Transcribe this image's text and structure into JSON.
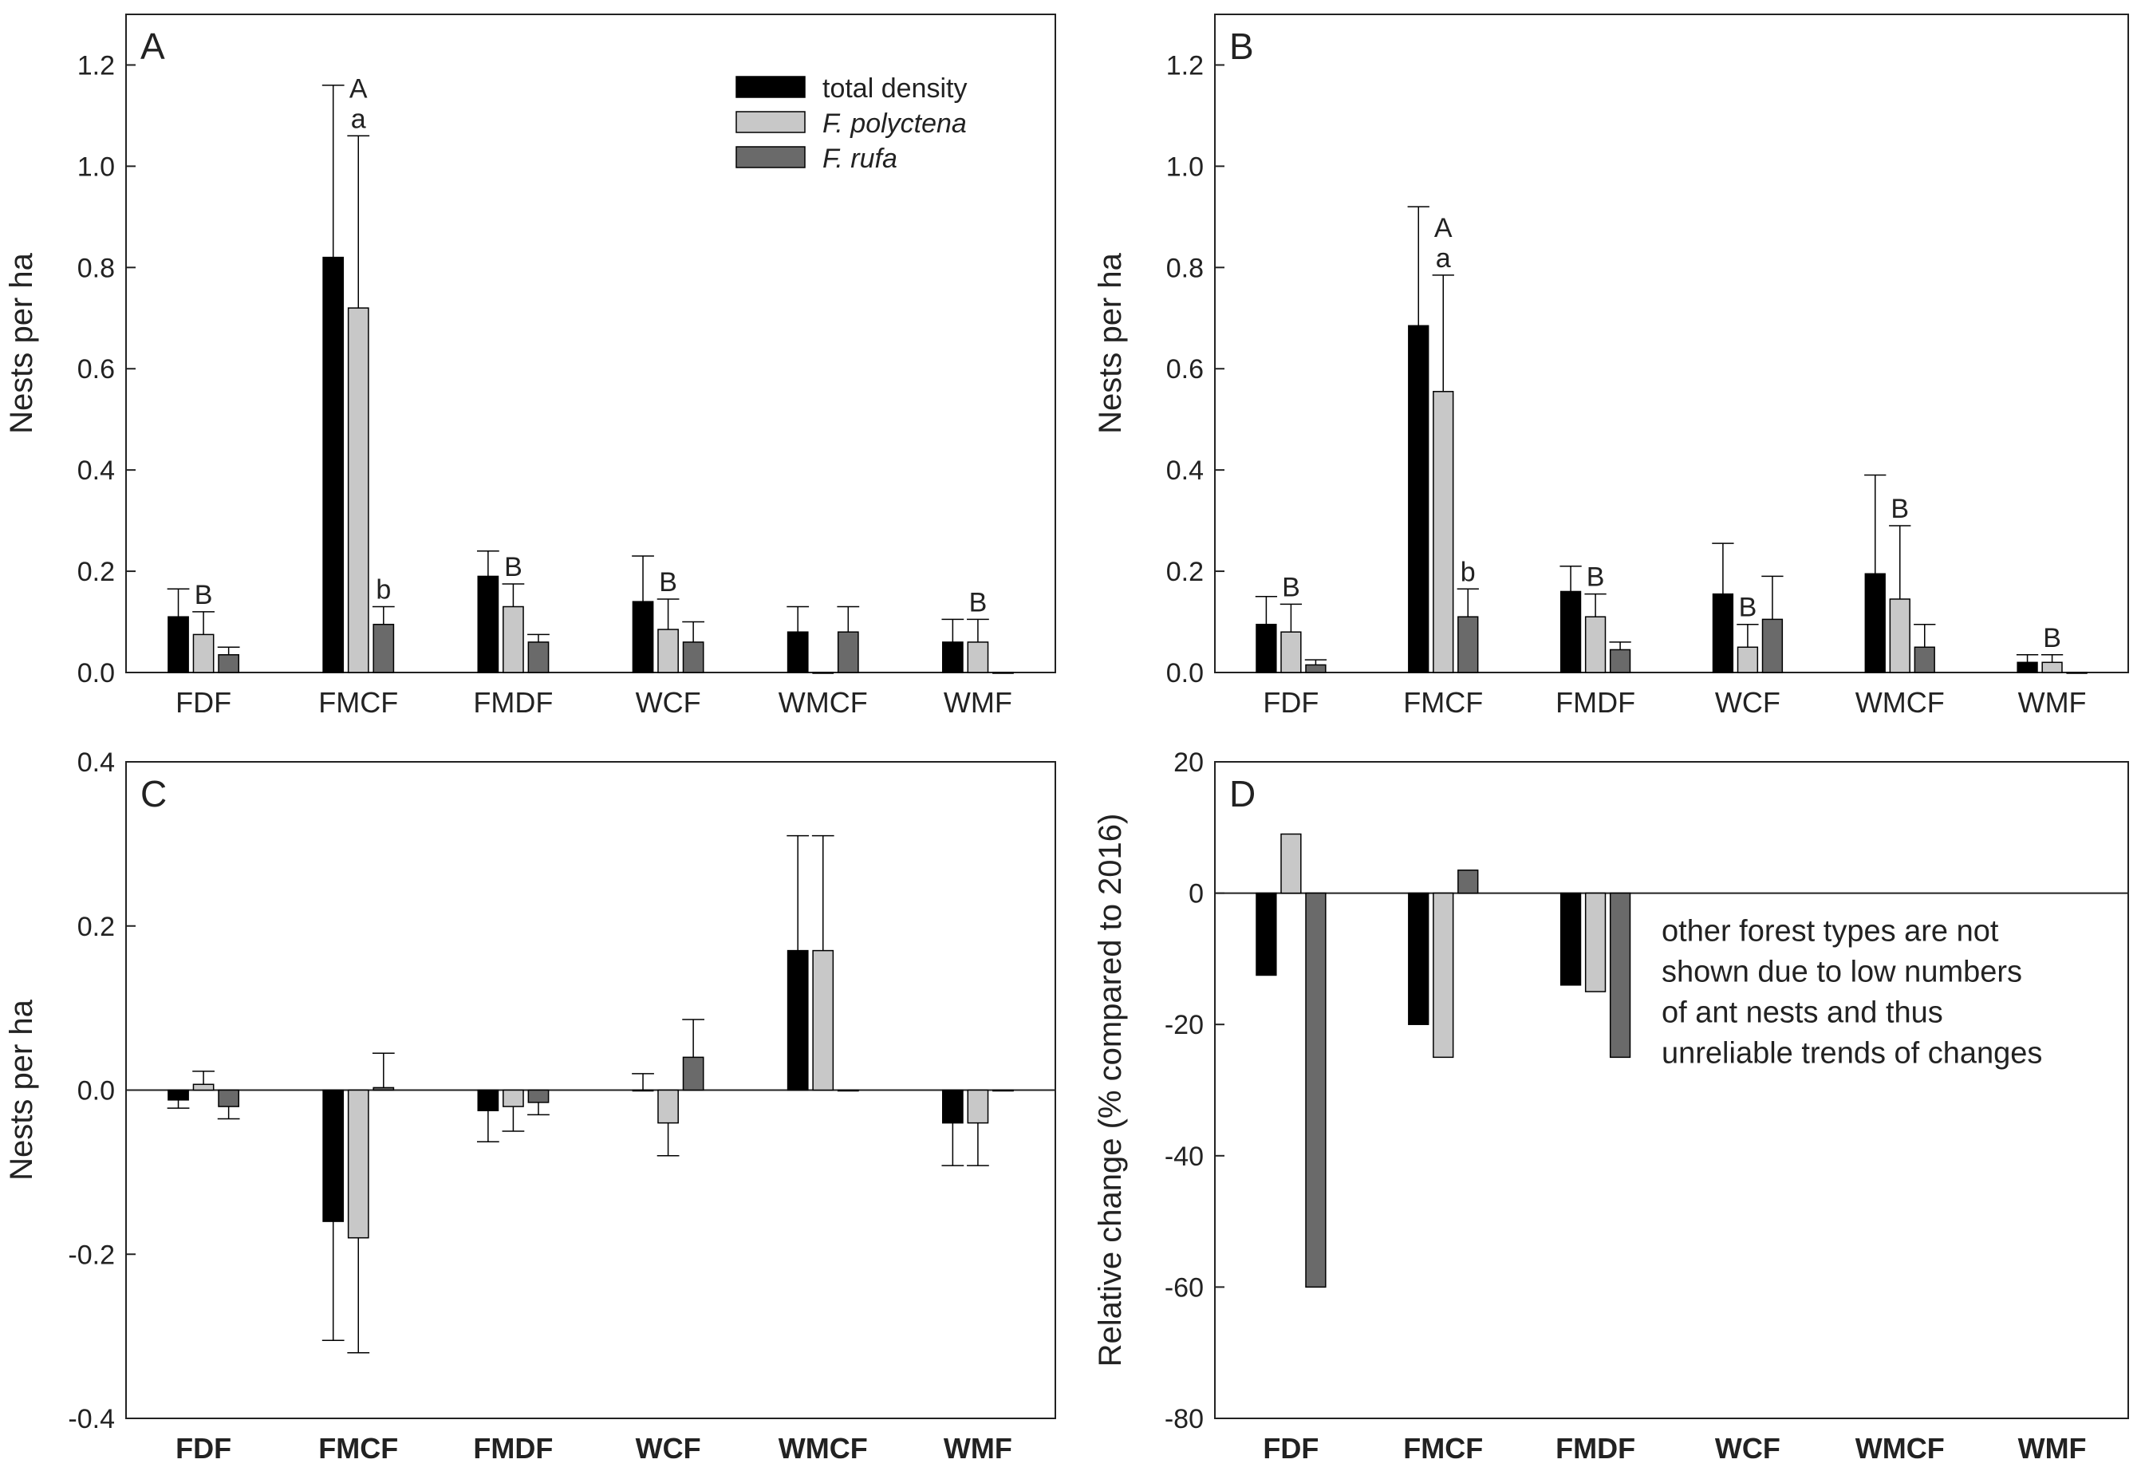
{
  "colors": {
    "total": "#000000",
    "polyctena": "#c8c8c8",
    "rufa": "#6a6a6a",
    "axis": "#222222"
  },
  "legend": [
    {
      "key": "total",
      "label": "total density",
      "italic": false
    },
    {
      "key": "polyctena",
      "label": "F. polyctena",
      "italic": true
    },
    {
      "key": "rufa",
      "label": "F. rufa",
      "italic": true
    }
  ],
  "chart_data": [
    {
      "panel": "A",
      "type": "bar",
      "categories": [
        "FDF",
        "FMCF",
        "FMDF",
        "WCF",
        "WMCF",
        "WMF"
      ],
      "ylabel": "Nests per ha",
      "ylim": [
        0,
        1.3
      ],
      "yticks": [
        "0.0",
        "0.2",
        "0.4",
        "0.6",
        "0.8",
        "1.0",
        "1.2"
      ],
      "series": [
        {
          "name": "total density",
          "values": [
            0.11,
            0.82,
            0.19,
            0.14,
            0.08,
            0.06
          ],
          "errors": [
            0.055,
            0.34,
            0.05,
            0.09,
            0.05,
            0.045
          ]
        },
        {
          "name": "F. polyctena",
          "values": [
            0.075,
            0.72,
            0.13,
            0.085,
            0,
            0.06
          ],
          "errors": [
            0.045,
            0.34,
            0.045,
            0.06,
            0,
            0.045
          ]
        },
        {
          "name": "F. rufa",
          "values": [
            0.035,
            0.095,
            0.06,
            0.06,
            0.08,
            0
          ],
          "errors": [
            0.015,
            0.035,
            0.015,
            0.04,
            0.05,
            0
          ]
        }
      ],
      "annotations": [
        {
          "text": "B",
          "category": 0,
          "series": 1
        },
        {
          "text": "a",
          "category": 1,
          "series": 1
        },
        {
          "text": "A",
          "category": 1,
          "series": 1,
          "stack": 1
        },
        {
          "text": "b",
          "category": 1,
          "series": 2
        },
        {
          "text": "B",
          "category": 2,
          "series": 1
        },
        {
          "text": "B",
          "category": 3,
          "series": 1
        },
        {
          "text": "B",
          "category": 5,
          "series": 1
        }
      ],
      "legend_position": "top-right"
    },
    {
      "panel": "B",
      "type": "bar",
      "categories": [
        "FDF",
        "FMCF",
        "FMDF",
        "WCF",
        "WMCF",
        "WMF"
      ],
      "ylabel": "Nests per ha",
      "ylim": [
        0,
        1.3
      ],
      "yticks": [
        "0.0",
        "0.2",
        "0.4",
        "0.6",
        "0.8",
        "1.0",
        "1.2"
      ],
      "series": [
        {
          "name": "total density",
          "values": [
            0.095,
            0.685,
            0.16,
            0.155,
            0.195,
            0.02
          ],
          "errors": [
            0.055,
            0.235,
            0.05,
            0.1,
            0.195,
            0.015
          ]
        },
        {
          "name": "F. polyctena",
          "values": [
            0.08,
            0.555,
            0.11,
            0.05,
            0.145,
            0.02
          ],
          "errors": [
            0.055,
            0.23,
            0.045,
            0.045,
            0.145,
            0.015
          ]
        },
        {
          "name": "F. rufa",
          "values": [
            0.015,
            0.11,
            0.045,
            0.105,
            0.05,
            0
          ],
          "errors": [
            0.01,
            0.055,
            0.015,
            0.085,
            0.045,
            0
          ]
        }
      ],
      "annotations": [
        {
          "text": "B",
          "category": 0,
          "series": 1
        },
        {
          "text": "a",
          "category": 1,
          "series": 1
        },
        {
          "text": "A",
          "category": 1,
          "series": 1,
          "stack": 1
        },
        {
          "text": "b",
          "category": 1,
          "series": 2
        },
        {
          "text": "B",
          "category": 2,
          "series": 1
        },
        {
          "text": "B",
          "category": 3,
          "series": 1
        },
        {
          "text": "B",
          "category": 4,
          "series": 1
        },
        {
          "text": "B",
          "category": 5,
          "series": 1
        }
      ]
    },
    {
      "panel": "C",
      "type": "bar",
      "categories": [
        "FDF",
        "FMCF",
        "FMDF",
        "WCF",
        "WMCF",
        "WMF"
      ],
      "ylabel": "Nests per ha",
      "ylim": [
        -0.4,
        0.4
      ],
      "yticks": [
        "-0.4",
        "-0.2",
        "0.0",
        "0.2",
        "0.4"
      ],
      "series": [
        {
          "name": "total density",
          "values": [
            -0.012,
            -0.16,
            -0.025,
            0,
            0.17,
            -0.04
          ],
          "errors": [
            0.01,
            0.145,
            0.038,
            0.02,
            0.14,
            0.052
          ]
        },
        {
          "name": "F. polyctena",
          "values": [
            0.007,
            -0.18,
            -0.02,
            -0.04,
            0.17,
            -0.04
          ],
          "errors": [
            0.016,
            0.14,
            0.03,
            0.04,
            0.14,
            0.052
          ]
        },
        {
          "name": "F. rufa",
          "values": [
            -0.02,
            0.003,
            -0.015,
            0.04,
            0,
            0
          ],
          "errors": [
            0.015,
            0.042,
            0.015,
            0.046,
            0,
            0
          ]
        }
      ]
    },
    {
      "panel": "D",
      "type": "bar",
      "categories": [
        "FDF",
        "FMCF",
        "FMDF",
        "WCF",
        "WMCF",
        "WMF"
      ],
      "ylabel": "Relative change (% compared to 2016)",
      "ylim": [
        -80,
        20
      ],
      "yticks": [
        "-80",
        "-60",
        "-40",
        "-20",
        "0",
        "20"
      ],
      "series": [
        {
          "name": "total density",
          "values": [
            -12.5,
            -20,
            -14,
            null,
            null,
            null
          ]
        },
        {
          "name": "F. polyctena",
          "values": [
            9,
            -25,
            -15,
            null,
            null,
            null
          ]
        },
        {
          "name": "F. rufa",
          "values": [
            -60,
            3.5,
            -25,
            null,
            null,
            null
          ]
        }
      ],
      "note": [
        "other forest types are not",
        "shown due to low numbers",
        "of ant nests and thus",
        "unreliable trends of changes"
      ]
    }
  ]
}
